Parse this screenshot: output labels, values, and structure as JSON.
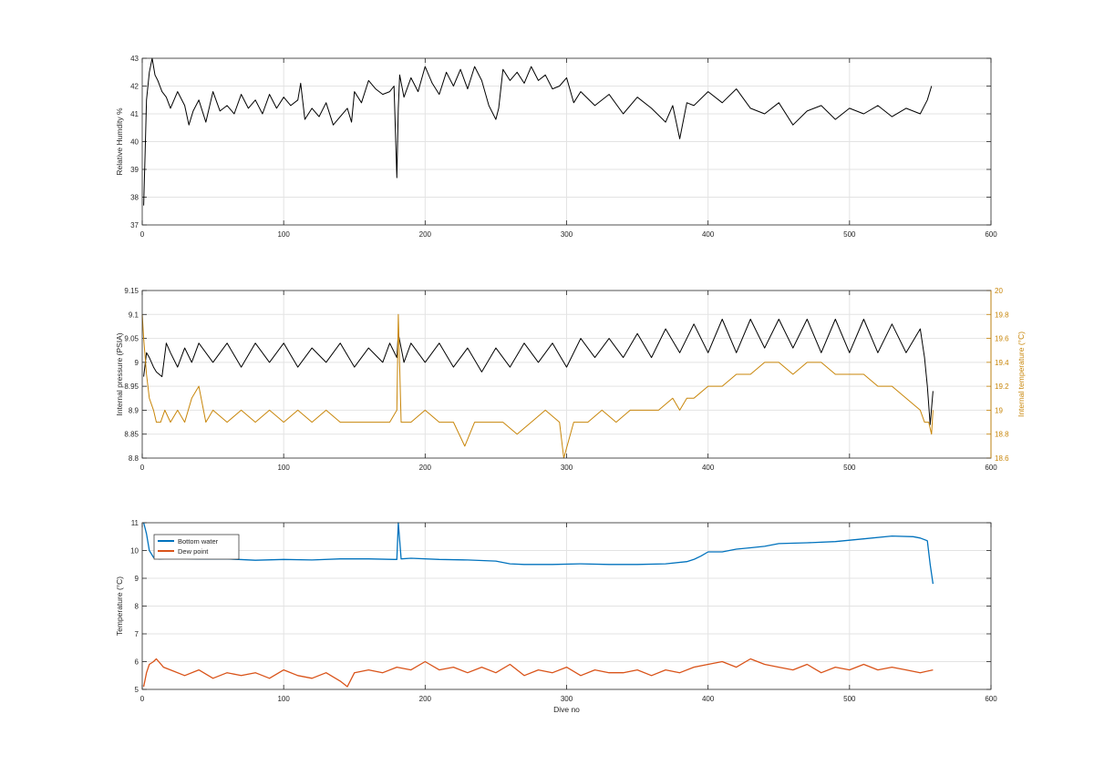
{
  "chart_data": [
    {
      "type": "line",
      "ylabel": "Relative Humdity %",
      "xlabel": "",
      "xlim": [
        0,
        600
      ],
      "ylim": [
        37,
        43
      ],
      "xticks": [
        0,
        100,
        200,
        300,
        400,
        500,
        600
      ],
      "yticks": [
        37,
        38,
        39,
        40,
        41,
        42,
        43
      ],
      "grid": true,
      "series": [
        {
          "name": "",
          "color": "#000000",
          "x": [
            1,
            2,
            3,
            5,
            7,
            9,
            11,
            14,
            17,
            20,
            25,
            30,
            33,
            36,
            40,
            45,
            50,
            55,
            60,
            65,
            70,
            75,
            80,
            85,
            90,
            95,
            100,
            105,
            110,
            112,
            115,
            120,
            125,
            130,
            135,
            140,
            145,
            148,
            150,
            155,
            160,
            165,
            170,
            175,
            178,
            180,
            181,
            182,
            185,
            190,
            195,
            200,
            205,
            210,
            215,
            220,
            225,
            230,
            235,
            240,
            245,
            250,
            252,
            255,
            260,
            265,
            270,
            275,
            280,
            285,
            290,
            295,
            300,
            305,
            310,
            320,
            330,
            340,
            350,
            360,
            370,
            375,
            380,
            385,
            390,
            400,
            410,
            420,
            430,
            440,
            450,
            460,
            470,
            480,
            490,
            500,
            510,
            520,
            530,
            540,
            550,
            555,
            558
          ],
          "y": [
            37.7,
            39.5,
            41.5,
            42.5,
            43.0,
            42.4,
            42.2,
            41.8,
            41.6,
            41.2,
            41.8,
            41.3,
            40.6,
            41.1,
            41.5,
            40.7,
            41.8,
            41.1,
            41.3,
            41.0,
            41.7,
            41.2,
            41.5,
            41.0,
            41.7,
            41.2,
            41.6,
            41.3,
            41.5,
            42.1,
            40.8,
            41.2,
            40.9,
            41.4,
            40.6,
            40.9,
            41.2,
            40.7,
            41.8,
            41.4,
            42.2,
            41.9,
            41.7,
            41.8,
            42.0,
            38.7,
            41.2,
            42.4,
            41.6,
            42.3,
            41.8,
            42.7,
            42.1,
            41.7,
            42.5,
            42.0,
            42.6,
            41.9,
            42.7,
            42.2,
            41.3,
            40.8,
            41.2,
            42.6,
            42.2,
            42.5,
            42.1,
            42.7,
            42.2,
            42.4,
            41.9,
            42.0,
            42.3,
            41.4,
            41.8,
            41.3,
            41.7,
            41.0,
            41.6,
            41.2,
            40.7,
            41.3,
            40.1,
            41.4,
            41.3,
            41.8,
            41.4,
            41.9,
            41.2,
            41.0,
            41.4,
            40.6,
            41.1,
            41.3,
            40.8,
            41.2,
            41.0,
            41.3,
            40.9,
            41.2,
            41.0,
            41.5,
            42.0
          ]
        }
      ]
    },
    {
      "type": "line",
      "ylabel": "Internal pressure (PSIA)",
      "y2label": "Internal temperature (°C)",
      "xlabel": "",
      "xlim": [
        0,
        600
      ],
      "ylim": [
        8.8,
        9.15
      ],
      "y2lim": [
        18.6,
        20
      ],
      "xticks": [
        0,
        100,
        200,
        300,
        400,
        500,
        600
      ],
      "yticks": [
        8.8,
        8.85,
        8.9,
        8.95,
        9,
        9.05,
        9.1,
        9.15
      ],
      "y2ticks": [
        18.6,
        18.8,
        19,
        19.2,
        19.4,
        19.6,
        19.8,
        20
      ],
      "grid": true,
      "series": [
        {
          "name": "",
          "axis": "left",
          "color": "#000000",
          "x": [
            1,
            3,
            5,
            8,
            10,
            14,
            17,
            20,
            25,
            30,
            35,
            40,
            50,
            60,
            70,
            80,
            90,
            100,
            110,
            120,
            130,
            140,
            150,
            160,
            170,
            175,
            180,
            181,
            185,
            190,
            200,
            210,
            220,
            230,
            240,
            250,
            260,
            270,
            280,
            290,
            300,
            310,
            320,
            330,
            340,
            350,
            360,
            370,
            380,
            390,
            400,
            410,
            420,
            430,
            440,
            450,
            460,
            470,
            480,
            490,
            500,
            510,
            520,
            530,
            540,
            550,
            553,
            555,
            557,
            559
          ],
          "y": [
            8.97,
            9.02,
            9.01,
            8.99,
            8.98,
            8.97,
            9.04,
            9.02,
            8.99,
            9.03,
            9.0,
            9.04,
            9.0,
            9.04,
            8.99,
            9.04,
            9.0,
            9.04,
            8.99,
            9.03,
            9.0,
            9.04,
            8.99,
            9.03,
            9.0,
            9.04,
            9.01,
            9.06,
            9.0,
            9.04,
            9.0,
            9.04,
            8.99,
            9.03,
            8.98,
            9.03,
            8.99,
            9.04,
            9.0,
            9.04,
            8.99,
            9.05,
            9.01,
            9.05,
            9.01,
            9.06,
            9.01,
            9.07,
            9.02,
            9.08,
            9.02,
            9.09,
            9.02,
            9.09,
            9.03,
            9.09,
            9.03,
            9.09,
            9.02,
            9.09,
            9.02,
            9.09,
            9.02,
            9.08,
            9.02,
            9.07,
            9.01,
            8.95,
            8.87,
            8.94
          ]
        },
        {
          "name": "",
          "axis": "right",
          "color": "#c8860a",
          "x": [
            0,
            1,
            3,
            5,
            8,
            10,
            13,
            16,
            20,
            25,
            30,
            35,
            40,
            45,
            50,
            60,
            70,
            80,
            90,
            100,
            110,
            120,
            130,
            140,
            150,
            160,
            170,
            175,
            180,
            181,
            183,
            190,
            200,
            210,
            220,
            228,
            235,
            245,
            255,
            265,
            275,
            285,
            295,
            298,
            305,
            315,
            325,
            335,
            345,
            355,
            365,
            375,
            380,
            385,
            390,
            400,
            410,
            420,
            430,
            440,
            450,
            460,
            470,
            480,
            490,
            500,
            510,
            520,
            530,
            540,
            550,
            553,
            556,
            558,
            559
          ],
          "y": [
            19.8,
            19.6,
            19.3,
            19.1,
            19.0,
            18.9,
            18.9,
            19.0,
            18.9,
            19.0,
            18.9,
            19.1,
            19.2,
            18.9,
            19.0,
            18.9,
            19.0,
            18.9,
            19.0,
            18.9,
            19.0,
            18.9,
            19.0,
            18.9,
            18.9,
            18.9,
            18.9,
            18.9,
            19.0,
            19.8,
            18.9,
            18.9,
            19.0,
            18.9,
            18.9,
            18.7,
            18.9,
            18.9,
            18.9,
            18.8,
            18.9,
            19.0,
            18.9,
            18.6,
            18.9,
            18.9,
            19.0,
            18.9,
            19.0,
            19.0,
            19.0,
            19.1,
            19.0,
            19.1,
            19.1,
            19.2,
            19.2,
            19.3,
            19.3,
            19.4,
            19.4,
            19.3,
            19.4,
            19.4,
            19.3,
            19.3,
            19.3,
            19.2,
            19.2,
            19.1,
            19.0,
            18.9,
            18.9,
            18.8,
            19.0
          ]
        }
      ]
    },
    {
      "type": "line",
      "ylabel": "Temperature (°C)",
      "xlabel": "Dive no",
      "xlim": [
        0,
        600
      ],
      "ylim": [
        5,
        11
      ],
      "xticks": [
        0,
        100,
        200,
        300,
        400,
        500,
        600
      ],
      "yticks": [
        5,
        6,
        7,
        8,
        9,
        10,
        11
      ],
      "grid": true,
      "legend": "top-left",
      "series": [
        {
          "name": "Bottom water",
          "color": "#0072bd",
          "x": [
            1,
            3,
            5,
            8,
            12,
            20,
            40,
            60,
            80,
            100,
            120,
            140,
            160,
            178,
            180,
            181,
            183,
            190,
            210,
            230,
            250,
            260,
            270,
            290,
            310,
            330,
            350,
            370,
            385,
            390,
            395,
            400,
            410,
            420,
            430,
            440,
            450,
            470,
            490,
            510,
            530,
            545,
            550,
            555,
            557,
            559
          ],
          "y": [
            11.0,
            10.6,
            10.0,
            9.75,
            9.7,
            9.72,
            9.7,
            9.7,
            9.65,
            9.68,
            9.66,
            9.7,
            9.7,
            9.68,
            9.68,
            11.0,
            9.7,
            9.72,
            9.68,
            9.66,
            9.62,
            9.52,
            9.5,
            9.5,
            9.52,
            9.5,
            9.5,
            9.52,
            9.6,
            9.68,
            9.8,
            9.95,
            9.95,
            10.05,
            10.1,
            10.15,
            10.25,
            10.28,
            10.32,
            10.42,
            10.52,
            10.5,
            10.45,
            10.35,
            9.5,
            8.8
          ]
        },
        {
          "name": "Dew point",
          "color": "#d95319",
          "x": [
            1,
            3,
            5,
            8,
            10,
            15,
            20,
            30,
            40,
            50,
            60,
            70,
            80,
            90,
            100,
            110,
            120,
            130,
            140,
            145,
            150,
            160,
            170,
            180,
            190,
            200,
            210,
            220,
            230,
            240,
            250,
            260,
            270,
            280,
            290,
            300,
            310,
            320,
            330,
            340,
            350,
            360,
            370,
            380,
            390,
            400,
            410,
            420,
            430,
            440,
            450,
            460,
            470,
            480,
            490,
            500,
            510,
            520,
            530,
            540,
            550,
            559
          ],
          "y": [
            5.1,
            5.6,
            5.9,
            6.0,
            6.1,
            5.8,
            5.7,
            5.5,
            5.7,
            5.4,
            5.6,
            5.5,
            5.6,
            5.4,
            5.7,
            5.5,
            5.4,
            5.6,
            5.3,
            5.1,
            5.6,
            5.7,
            5.6,
            5.8,
            5.7,
            6.0,
            5.7,
            5.8,
            5.6,
            5.8,
            5.6,
            5.9,
            5.5,
            5.7,
            5.6,
            5.8,
            5.5,
            5.7,
            5.6,
            5.6,
            5.7,
            5.5,
            5.7,
            5.6,
            5.8,
            5.9,
            6.0,
            5.8,
            6.1,
            5.9,
            5.8,
            5.7,
            5.9,
            5.6,
            5.8,
            5.7,
            5.9,
            5.7,
            5.8,
            5.7,
            5.6,
            5.7
          ]
        }
      ]
    }
  ]
}
